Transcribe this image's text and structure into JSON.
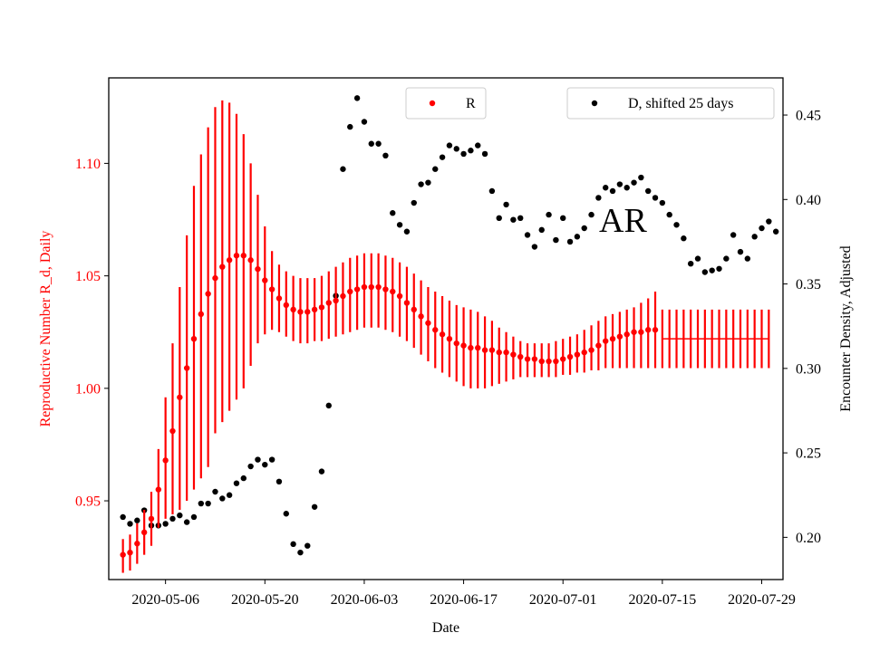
{
  "chart_data": {
    "type": "scatter",
    "xlabel": "Date",
    "ylabel_left": "Reproductive Number R_d, Daily",
    "ylabel_right": "Encounter Density, Adjusted",
    "annotation": "AR",
    "x_range": [
      "2020-04-28",
      "2020-08-01"
    ],
    "ylim_left": [
      0.915,
      1.138
    ],
    "ylim_right": [
      0.175,
      0.472
    ],
    "x_tick_labels": [
      "2020-05-06",
      "2020-05-20",
      "2020-06-03",
      "2020-06-17",
      "2020-07-01",
      "2020-07-15",
      "2020-07-29"
    ],
    "y_left_tick_labels": [
      "0.95",
      "1.00",
      "1.05",
      "1.10"
    ],
    "y_right_tick_labels": [
      "0.20",
      "0.25",
      "0.30",
      "0.35",
      "0.40",
      "0.45"
    ],
    "y_left_ticks": [
      0.95,
      1.0,
      1.05,
      1.1
    ],
    "y_right_ticks": [
      0.2,
      0.25,
      0.3,
      0.35,
      0.4,
      0.45
    ],
    "legend_left": {
      "label": "R",
      "position": "upper-center"
    },
    "legend_right": {
      "label": "D, shifted 25 days",
      "position": "upper-right"
    },
    "colors": {
      "R": "#ff0000",
      "D": "#000000",
      "left_axis_text": "#ff0000"
    },
    "series_R": {
      "name": "R",
      "start_date": "2020-04-30",
      "values": [
        0.926,
        0.927,
        0.931,
        0.936,
        0.942,
        0.955,
        0.968,
        0.981,
        0.996,
        1.009,
        1.022,
        1.033,
        1.042,
        1.049,
        1.054,
        1.057,
        1.059,
        1.059,
        1.057,
        1.053,
        1.048,
        1.044,
        1.04,
        1.037,
        1.035,
        1.034,
        1.034,
        1.035,
        1.036,
        1.038,
        1.039,
        1.041,
        1.043,
        1.044,
        1.045,
        1.045,
        1.045,
        1.044,
        1.043,
        1.041,
        1.038,
        1.035,
        1.032,
        1.029,
        1.026,
        1.024,
        1.022,
        1.02,
        1.019,
        1.018,
        1.018,
        1.017,
        1.017,
        1.016,
        1.016,
        1.015,
        1.014,
        1.013,
        1.013,
        1.012,
        1.012,
        1.012,
        1.013,
        1.014,
        1.015,
        1.016,
        1.017,
        1.019,
        1.021,
        1.022,
        1.023,
        1.024,
        1.025,
        1.025,
        1.026,
        1.026
      ],
      "lower": [
        0.918,
        0.919,
        0.922,
        0.926,
        0.93,
        0.938,
        0.942,
        0.944,
        0.946,
        0.95,
        0.955,
        0.96,
        0.965,
        0.98,
        0.985,
        0.99,
        0.995,
        1.0,
        1.01,
        1.02,
        1.024,
        1.026,
        1.025,
        1.023,
        1.021,
        1.02,
        1.02,
        1.021,
        1.021,
        1.022,
        1.023,
        1.024,
        1.025,
        1.026,
        1.027,
        1.027,
        1.027,
        1.026,
        1.025,
        1.023,
        1.021,
        1.018,
        1.015,
        1.012,
        1.009,
        1.007,
        1.005,
        1.003,
        1.001,
        1.0,
        1.0,
        1.0,
        1.001,
        1.002,
        1.003,
        1.004,
        1.005,
        1.005,
        1.005,
        1.005,
        1.005,
        1.005,
        1.006,
        1.006,
        1.007,
        1.007,
        1.008,
        1.008,
        1.009,
        1.009,
        1.009,
        1.009,
        1.009,
        1.009,
        1.009,
        1.009
      ],
      "upper": [
        0.933,
        0.935,
        0.94,
        0.946,
        0.954,
        0.973,
        0.996,
        1.02,
        1.045,
        1.068,
        1.09,
        1.104,
        1.116,
        1.125,
        1.128,
        1.127,
        1.122,
        1.113,
        1.1,
        1.086,
        1.072,
        1.061,
        1.055,
        1.052,
        1.05,
        1.049,
        1.049,
        1.049,
        1.05,
        1.052,
        1.054,
        1.056,
        1.058,
        1.059,
        1.06,
        1.06,
        1.06,
        1.059,
        1.058,
        1.056,
        1.054,
        1.051,
        1.048,
        1.045,
        1.043,
        1.041,
        1.039,
        1.037,
        1.036,
        1.035,
        1.034,
        1.032,
        1.03,
        1.027,
        1.025,
        1.023,
        1.021,
        1.02,
        1.02,
        1.02,
        1.02,
        1.021,
        1.022,
        1.023,
        1.024,
        1.026,
        1.028,
        1.03,
        1.032,
        1.033,
        1.034,
        1.035,
        1.036,
        1.038,
        1.04,
        1.043
      ]
    },
    "series_R_projection": {
      "start_date": "2020-07-15",
      "end_date": "2020-07-30",
      "value": 1.022,
      "lower": 1.009,
      "upper": 1.035
    },
    "series_D": {
      "name": "D, shifted 25 days",
      "points": [
        [
          "2020-04-30",
          0.212
        ],
        [
          "2020-05-01",
          0.208
        ],
        [
          "2020-05-02",
          0.21
        ],
        [
          "2020-05-03",
          0.216
        ],
        [
          "2020-05-04",
          0.207
        ],
        [
          "2020-05-05",
          0.207
        ],
        [
          "2020-05-06",
          0.208
        ],
        [
          "2020-05-07",
          0.211
        ],
        [
          "2020-05-08",
          0.213
        ],
        [
          "2020-05-09",
          0.209
        ],
        [
          "2020-05-10",
          0.212
        ],
        [
          "2020-05-11",
          0.22
        ],
        [
          "2020-05-12",
          0.22
        ],
        [
          "2020-05-13",
          0.227
        ],
        [
          "2020-05-14",
          0.223
        ],
        [
          "2020-05-15",
          0.225
        ],
        [
          "2020-05-16",
          0.232
        ],
        [
          "2020-05-17",
          0.235
        ],
        [
          "2020-05-18",
          0.242
        ],
        [
          "2020-05-19",
          0.246
        ],
        [
          "2020-05-20",
          0.243
        ],
        [
          "2020-05-21",
          0.246
        ],
        [
          "2020-05-22",
          0.233
        ],
        [
          "2020-05-23",
          0.214
        ],
        [
          "2020-05-24",
          0.196
        ],
        [
          "2020-05-25",
          0.191
        ],
        [
          "2020-05-26",
          0.195
        ],
        [
          "2020-05-27",
          0.218
        ],
        [
          "2020-05-28",
          0.239
        ],
        [
          "2020-05-29",
          0.278
        ],
        [
          "2020-05-30",
          0.343
        ],
        [
          "2020-05-31",
          0.418
        ],
        [
          "2020-06-01",
          0.443
        ],
        [
          "2020-06-02",
          0.46
        ],
        [
          "2020-06-03",
          0.446
        ],
        [
          "2020-06-04",
          0.433
        ],
        [
          "2020-06-05",
          0.433
        ],
        [
          "2020-06-06",
          0.426
        ],
        [
          "2020-06-07",
          0.392
        ],
        [
          "2020-06-08",
          0.385
        ],
        [
          "2020-06-09",
          0.381
        ],
        [
          "2020-06-10",
          0.398
        ],
        [
          "2020-06-11",
          0.409
        ],
        [
          "2020-06-12",
          0.41
        ],
        [
          "2020-06-13",
          0.418
        ],
        [
          "2020-06-14",
          0.425
        ],
        [
          "2020-06-15",
          0.432
        ],
        [
          "2020-06-16",
          0.43
        ],
        [
          "2020-06-17",
          0.427
        ],
        [
          "2020-06-18",
          0.429
        ],
        [
          "2020-06-19",
          0.432
        ],
        [
          "2020-06-20",
          0.427
        ],
        [
          "2020-06-21",
          0.405
        ],
        [
          "2020-06-22",
          0.389
        ],
        [
          "2020-06-23",
          0.397
        ],
        [
          "2020-06-24",
          0.388
        ],
        [
          "2020-06-25",
          0.389
        ],
        [
          "2020-06-26",
          0.379
        ],
        [
          "2020-06-27",
          0.372
        ],
        [
          "2020-06-28",
          0.382
        ],
        [
          "2020-06-29",
          0.391
        ],
        [
          "2020-06-30",
          0.376
        ],
        [
          "2020-07-01",
          0.389
        ],
        [
          "2020-07-02",
          0.375
        ],
        [
          "2020-07-03",
          0.378
        ],
        [
          "2020-07-04",
          0.383
        ],
        [
          "2020-07-05",
          0.391
        ],
        [
          "2020-07-06",
          0.401
        ],
        [
          "2020-07-07",
          0.407
        ],
        [
          "2020-07-08",
          0.405
        ],
        [
          "2020-07-09",
          0.409
        ],
        [
          "2020-07-10",
          0.407
        ],
        [
          "2020-07-11",
          0.41
        ],
        [
          "2020-07-12",
          0.413
        ],
        [
          "2020-07-13",
          0.405
        ],
        [
          "2020-07-14",
          0.401
        ],
        [
          "2020-07-15",
          0.398
        ],
        [
          "2020-07-16",
          0.391
        ],
        [
          "2020-07-17",
          0.385
        ],
        [
          "2020-07-18",
          0.377
        ],
        [
          "2020-07-19",
          0.362
        ],
        [
          "2020-07-20",
          0.365
        ],
        [
          "2020-07-21",
          0.357
        ],
        [
          "2020-07-22",
          0.358
        ],
        [
          "2020-07-23",
          0.359
        ],
        [
          "2020-07-24",
          0.365
        ],
        [
          "2020-07-25",
          0.379
        ],
        [
          "2020-07-26",
          0.369
        ],
        [
          "2020-07-27",
          0.365
        ],
        [
          "2020-07-28",
          0.378
        ],
        [
          "2020-07-29",
          0.383
        ],
        [
          "2020-07-30",
          0.387
        ],
        [
          "2020-07-31",
          0.381
        ]
      ]
    }
  }
}
